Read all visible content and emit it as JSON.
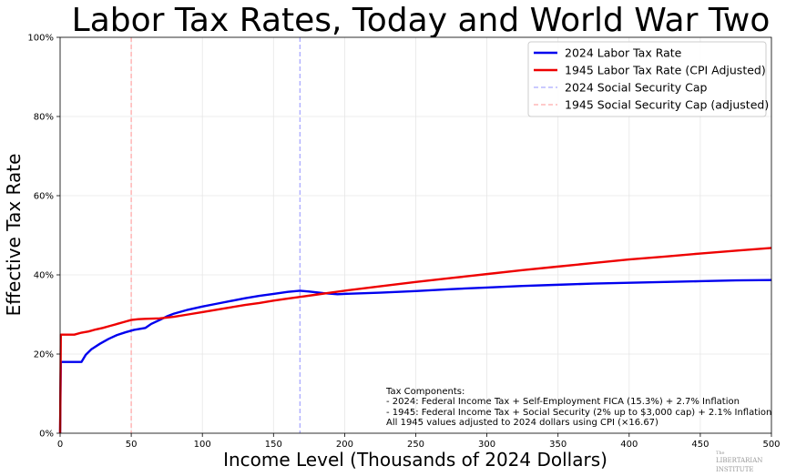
{
  "chart_data": {
    "type": "line",
    "title": "Labor Tax Rates, Today and World War Two",
    "xlabel": "Income Level (Thousands of 2024 Dollars)",
    "ylabel": "Effective Tax Rate",
    "xlim": [
      0,
      500
    ],
    "ylim": [
      0,
      100
    ],
    "x_ticks": [
      "0",
      "50",
      "100",
      "150",
      "200",
      "250",
      "300",
      "350",
      "400",
      "450",
      "500"
    ],
    "y_ticks": [
      "0%",
      "20%",
      "40%",
      "60%",
      "80%",
      "100%"
    ],
    "grid": true,
    "legend_position": "top-right",
    "series": [
      {
        "name": "2024 Labor Tax Rate",
        "color": "#0000ee",
        "style": "solid",
        "points": [
          [
            0,
            0
          ],
          [
            0.5,
            18
          ],
          [
            10,
            18
          ],
          [
            15,
            18
          ],
          [
            18,
            19.8
          ],
          [
            22,
            21.2
          ],
          [
            28,
            22.6
          ],
          [
            34,
            23.8
          ],
          [
            40,
            24.8
          ],
          [
            46,
            25.5
          ],
          [
            52,
            26.1
          ],
          [
            60,
            26.6
          ],
          [
            64,
            27.6
          ],
          [
            70,
            28.6
          ],
          [
            75,
            29.5
          ],
          [
            80,
            30.2
          ],
          [
            90,
            31.2
          ],
          [
            100,
            32
          ],
          [
            110,
            32.7
          ],
          [
            120,
            33.4
          ],
          [
            130,
            34.1
          ],
          [
            140,
            34.7
          ],
          [
            150,
            35.2
          ],
          [
            160,
            35.7
          ],
          [
            168.6,
            36
          ],
          [
            175,
            35.8
          ],
          [
            185,
            35.4
          ],
          [
            195,
            35.1
          ],
          [
            200,
            35.2
          ],
          [
            225,
            35.5
          ],
          [
            250,
            35.9
          ],
          [
            275,
            36.4
          ],
          [
            300,
            36.8
          ],
          [
            325,
            37.2
          ],
          [
            350,
            37.5
          ],
          [
            375,
            37.8
          ],
          [
            400,
            38
          ],
          [
            425,
            38.2
          ],
          [
            450,
            38.4
          ],
          [
            475,
            38.6
          ],
          [
            500,
            38.7
          ]
        ]
      },
      {
        "name": "1945 Labor Tax Rate (CPI Adjusted)",
        "color": "#ee0000",
        "style": "solid",
        "points": [
          [
            0,
            0
          ],
          [
            0.5,
            24.9
          ],
          [
            5,
            24.9
          ],
          [
            10,
            24.9
          ],
          [
            15,
            25.4
          ],
          [
            20,
            25.7
          ],
          [
            25,
            26.2
          ],
          [
            30,
            26.6
          ],
          [
            35,
            27.1
          ],
          [
            40,
            27.6
          ],
          [
            45,
            28.1
          ],
          [
            50,
            28.6
          ],
          [
            55,
            28.8
          ],
          [
            60,
            28.9
          ],
          [
            70,
            29
          ],
          [
            80,
            29.4
          ],
          [
            90,
            30
          ],
          [
            100,
            30.6
          ],
          [
            110,
            31.2
          ],
          [
            120,
            31.8
          ],
          [
            130,
            32.4
          ],
          [
            140,
            32.9
          ],
          [
            150,
            33.5
          ],
          [
            160,
            34
          ],
          [
            170,
            34.5
          ],
          [
            180,
            35
          ],
          [
            190,
            35.5
          ],
          [
            200,
            36
          ],
          [
            225,
            37.1
          ],
          [
            250,
            38.2
          ],
          [
            275,
            39.2
          ],
          [
            300,
            40.2
          ],
          [
            325,
            41.2
          ],
          [
            350,
            42.1
          ],
          [
            375,
            43
          ],
          [
            400,
            43.9
          ],
          [
            425,
            44.6
          ],
          [
            450,
            45.4
          ],
          [
            475,
            46.1
          ],
          [
            500,
            46.8
          ]
        ]
      },
      {
        "name": "2024 Social Security Cap",
        "color": "#aaaaff",
        "style": "dashed",
        "vline_x": 168.6
      },
      {
        "name": "1945 Social Security Cap (adjusted)",
        "color": "#ffaaaa",
        "style": "dashed",
        "vline_x": 50
      }
    ],
    "annotation": [
      "Tax Components:",
      "- 2024: Federal Income Tax + Self-Employment FICA (15.3%) + 2.7% Inflation",
      "- 1945: Federal Income Tax + Social Security (2% up to $3,000 cap) + 2.1% Inflation",
      "All 1945 values adjusted to 2024 dollars using CPI (×16.67)"
    ]
  },
  "watermark": {
    "line1": "The",
    "line2": "LIBERTARIAN",
    "line3": "INSTITUTE"
  }
}
